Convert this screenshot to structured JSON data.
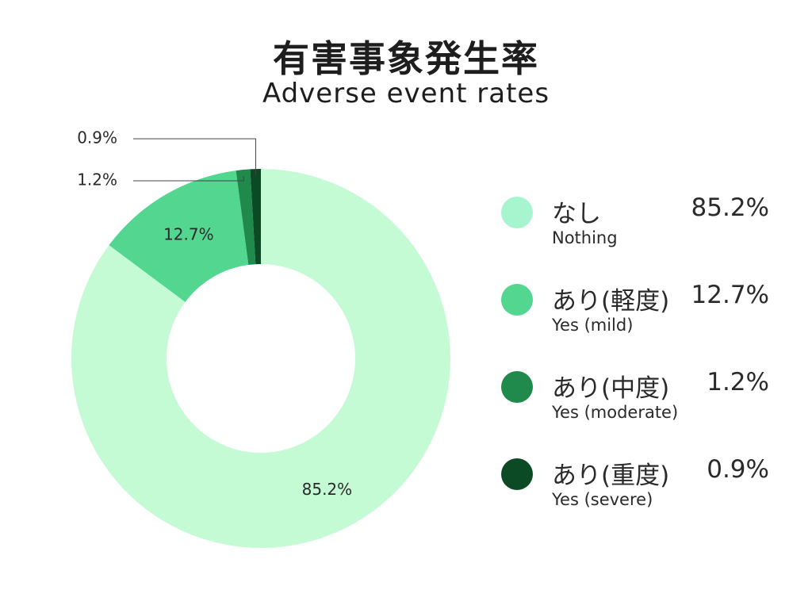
{
  "title": "有害事象発生率",
  "subtitle": "Adverse event rates",
  "chart_data": {
    "type": "pie",
    "donut": true,
    "title": "有害事象発生率",
    "subtitle": "Adverse event rates",
    "categories": [
      "なし",
      "あり(軽度)",
      "あり(中度)",
      "あり(重度)"
    ],
    "categories_en": [
      "Nothing",
      "Yes (mild)",
      "Yes (moderate)",
      "Yes (severe)"
    ],
    "values": [
      85.2,
      12.7,
      1.2,
      0.9
    ],
    "value_labels": [
      "85.2%",
      "12.7%",
      "1.2%",
      "0.9%"
    ],
    "colors": [
      "#c4fbd5",
      "#52d690",
      "#1f8a4c",
      "#0b4a24"
    ],
    "legend_colors": [
      "#a6f5cf",
      "#52d690",
      "#1f8a4c",
      "#0b4a24"
    ],
    "legend_position": "right"
  },
  "legend": [
    {
      "jp": "なし",
      "en": "Nothing",
      "pct": "85.2%"
    },
    {
      "jp": "あり(軽度)",
      "en": "Yes (mild)",
      "pct": "12.7%"
    },
    {
      "jp": "あり(中度)",
      "en": "Yes (moderate)",
      "pct": "1.2%"
    },
    {
      "jp": "あり(重度)",
      "en": "Yes (severe)",
      "pct": "0.9%"
    }
  ]
}
